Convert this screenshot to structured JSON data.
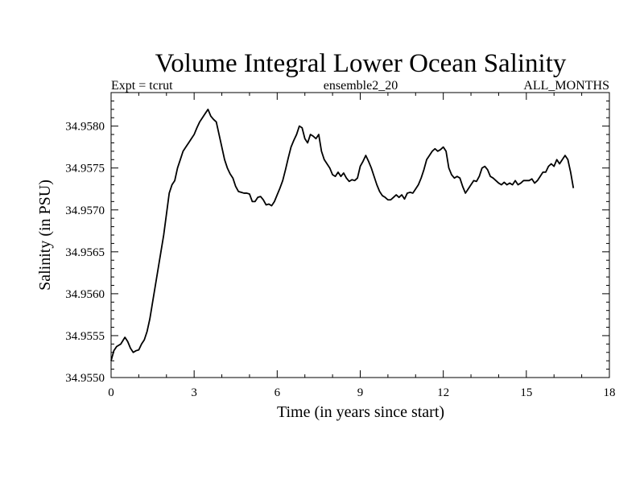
{
  "chart_data": {
    "type": "line",
    "title": "Volume Integral Lower Ocean Salinity",
    "subtitle_left": "Expt = tcrut",
    "subtitle_center": "ensemble2_20",
    "subtitle_right": "ALL_MONTHS",
    "xlabel": "Time (in years since start)",
    "ylabel": "Salinity (in PSU)",
    "xlim": [
      0,
      18
    ],
    "ylim": [
      34.955,
      34.9584
    ],
    "xticks": [
      0,
      3,
      6,
      9,
      12,
      15,
      18
    ],
    "xtick_labels": [
      "0",
      "3",
      "6",
      "9",
      "12",
      "15",
      "18"
    ],
    "yticks": [
      34.955,
      34.9555,
      34.956,
      34.9565,
      34.957,
      34.9575,
      34.958
    ],
    "ytick_labels": [
      "34.9550",
      "34.9555",
      "34.9560",
      "34.9565",
      "34.9570",
      "34.9575",
      "34.9580"
    ],
    "grid": false,
    "series": [
      {
        "name": "salinity",
        "x": [
          0.0,
          0.1,
          0.2,
          0.35,
          0.5,
          0.6,
          0.7,
          0.8,
          0.9,
          1.0,
          1.1,
          1.2,
          1.3,
          1.4,
          1.5,
          1.6,
          1.7,
          1.8,
          1.9,
          2.0,
          2.1,
          2.2,
          2.3,
          2.4,
          2.5,
          2.6,
          2.7,
          2.8,
          2.9,
          3.0,
          3.1,
          3.2,
          3.3,
          3.4,
          3.5,
          3.6,
          3.7,
          3.8,
          3.9,
          4.0,
          4.1,
          4.2,
          4.3,
          4.4,
          4.5,
          4.6,
          4.7,
          4.8,
          4.9,
          5.0,
          5.1,
          5.2,
          5.3,
          5.4,
          5.5,
          5.6,
          5.7,
          5.8,
          5.9,
          6.0,
          6.1,
          6.2,
          6.3,
          6.4,
          6.5,
          6.6,
          6.7,
          6.8,
          6.9,
          7.0,
          7.1,
          7.2,
          7.3,
          7.4,
          7.5,
          7.6,
          7.7,
          7.8,
          7.9,
          8.0,
          8.1,
          8.2,
          8.3,
          8.4,
          8.5,
          8.6,
          8.7,
          8.8,
          8.9,
          9.0,
          9.1,
          9.2,
          9.3,
          9.4,
          9.5,
          9.6,
          9.7,
          9.8,
          9.9,
          10.0,
          10.1,
          10.2,
          10.3,
          10.4,
          10.5,
          10.6,
          10.7,
          10.8,
          10.9,
          11.0,
          11.1,
          11.2,
          11.3,
          11.4,
          11.5,
          11.6,
          11.7,
          11.8,
          11.9,
          12.0,
          12.1,
          12.2,
          12.3,
          12.4,
          12.5,
          12.6,
          12.7,
          12.8,
          12.9,
          13.0,
          13.1,
          13.2,
          13.3,
          13.4,
          13.5,
          13.6,
          13.7,
          13.8,
          13.9,
          14.0,
          14.1,
          14.2,
          14.3,
          14.4,
          14.5,
          14.6,
          14.7,
          14.8,
          14.9,
          15.0,
          15.1,
          15.2,
          15.3,
          15.4,
          15.5,
          15.6,
          15.7,
          15.8,
          15.9,
          16.0,
          16.1,
          16.2,
          16.3,
          16.4,
          16.5,
          16.6,
          16.7
        ],
        "values": [
          34.9552,
          34.95532,
          34.95537,
          34.9554,
          34.95548,
          34.95543,
          34.95535,
          34.9553,
          34.95532,
          34.95533,
          34.9554,
          34.95545,
          34.95555,
          34.9557,
          34.9559,
          34.9561,
          34.9563,
          34.9565,
          34.9567,
          34.95695,
          34.9572,
          34.9573,
          34.95735,
          34.9575,
          34.9576,
          34.9577,
          34.95775,
          34.9578,
          34.95785,
          34.9579,
          34.95798,
          34.95805,
          34.9581,
          34.95815,
          34.9582,
          34.95812,
          34.95808,
          34.95805,
          34.9579,
          34.95775,
          34.9576,
          34.9575,
          34.95743,
          34.95738,
          34.95728,
          34.95722,
          34.95721,
          34.9572,
          34.9572,
          34.95719,
          34.9571,
          34.9571,
          34.95715,
          34.95716,
          34.95712,
          34.95706,
          34.95707,
          34.95705,
          34.9571,
          34.95718,
          34.95726,
          34.95735,
          34.95748,
          34.95762,
          34.95775,
          34.95783,
          34.9579,
          34.958,
          34.95798,
          34.95785,
          34.9578,
          34.9579,
          34.95788,
          34.95785,
          34.9579,
          34.9577,
          34.9576,
          34.95755,
          34.9575,
          34.95742,
          34.9574,
          34.95745,
          34.9574,
          34.95744,
          34.95738,
          34.95734,
          34.95736,
          34.95735,
          34.95738,
          34.95752,
          34.95758,
          34.95765,
          34.95758,
          34.9575,
          34.9574,
          34.9573,
          34.95722,
          34.95717,
          34.95715,
          34.95712,
          34.95712,
          34.95715,
          34.95718,
          34.95715,
          34.95718,
          34.95713,
          34.9572,
          34.95721,
          34.9572,
          34.95725,
          34.9573,
          34.95738,
          34.95748,
          34.9576,
          34.95765,
          34.9577,
          34.95773,
          34.9577,
          34.95772,
          34.95775,
          34.9577,
          34.9575,
          34.95742,
          34.95738,
          34.9574,
          34.95738,
          34.95728,
          34.9572,
          34.95725,
          34.9573,
          34.95735,
          34.95734,
          34.9574,
          34.9575,
          34.95752,
          34.95748,
          34.9574,
          34.95738,
          34.95735,
          34.95732,
          34.9573,
          34.95733,
          34.9573,
          34.95732,
          34.9573,
          34.95735,
          34.9573,
          34.95732,
          34.95735,
          34.95735,
          34.95735,
          34.95737,
          34.95732,
          34.95735,
          34.9574,
          34.95745,
          34.95745,
          34.95752,
          34.95755,
          34.95752,
          34.9576,
          34.95755,
          34.9576,
          34.95765,
          34.9576,
          34.95745,
          34.95726
        ]
      }
    ]
  }
}
